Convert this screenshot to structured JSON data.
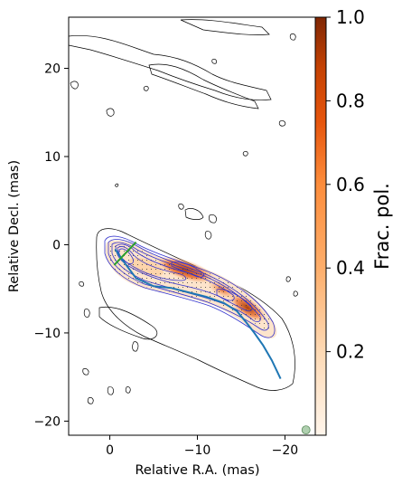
{
  "chart_data": {
    "type": "contour",
    "xlabel": "Relative R.A. (mas)",
    "ylabel": "Relative Decl. (mas)",
    "xlim": [
      4.7,
      -24.7
    ],
    "ylim": [
      -21.6,
      25.8
    ],
    "x_ticks": [
      0,
      -10,
      -20
    ],
    "x_tick_labels": [
      "0",
      "−10",
      "−20"
    ],
    "y_ticks": [
      20,
      10,
      0,
      -10,
      -20
    ],
    "y_tick_labels": [
      "20",
      "10",
      "0",
      "−10",
      "−20"
    ],
    "colorbar": {
      "label": "Frac. pol.",
      "range": [
        0,
        1
      ],
      "ticks": [
        0.2,
        0.4,
        0.6,
        0.8,
        1.0
      ],
      "tick_labels": [
        "0.2",
        "0.4",
        "0.6",
        "0.8",
        "1.0"
      ],
      "colors": [
        "#fff1e5",
        "#fdd0a2",
        "#fd8d3c",
        "#d94801",
        "#7f2704"
      ]
    },
    "jet_ridge_line": {
      "color": "#1f77b4",
      "x": [
        0.6,
        1.5,
        3.0,
        5.0,
        7.0,
        9.0,
        11.0,
        13.0,
        14.5,
        15.5,
        16.5,
        17.5,
        18.5,
        19.5
      ],
      "y": [
        -0.5,
        -1.8,
        -3.8,
        -4.7,
        -4.9,
        -5.4,
        -5.9,
        -6.6,
        -7.5,
        -8.7,
        -10.0,
        -11.4,
        -13.1,
        -15.2
      ]
    },
    "evpa_segment": {
      "color": "#2ca02c",
      "x": [
        0.5,
        3.0
      ],
      "y": [
        -2.3,
        0.3
      ]
    },
    "beam": {
      "x": -22.4,
      "y": -21.0,
      "color": "#8fbc8f"
    },
    "fractional_pol_peaks": [
      {
        "x": -8.5,
        "y": -3.4,
        "value": 0.95
      },
      {
        "x": -15.3,
        "y": -8.1,
        "value": 0.8
      },
      {
        "x": -12.5,
        "y": -5.5,
        "value": 0.6
      },
      {
        "x": -4.5,
        "y": -3.2,
        "value": 0.35
      }
    ]
  }
}
